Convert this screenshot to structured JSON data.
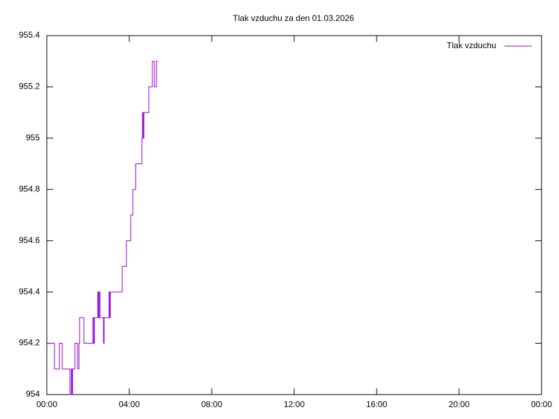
{
  "chart_data": {
    "type": "line",
    "title": "Tlak vzduchu za den 01.03.2026",
    "x": [
      0,
      0.37,
      0.61,
      0.75,
      1.12,
      1.19,
      1.22,
      1.25,
      1.36,
      1.49,
      1.56,
      1.59,
      1.8,
      2.24,
      2.27,
      2.31,
      2.47,
      2.51,
      2.54,
      2.58,
      2.75,
      2.78,
      3.02,
      3.05,
      3.08,
      3.66,
      3.86,
      4.07,
      4.17,
      4.31,
      4.61,
      4.64,
      4.68,
      4.71,
      4.95,
      5.12,
      5.22,
      5.32,
      5.39
    ],
    "series": [
      {
        "name": "Tlak vzduchu",
        "color": "#9400d3",
        "values": [
          954.2,
          954.1,
          954.2,
          954.1,
          954.0,
          954.1,
          954.0,
          954.1,
          954.2,
          954.1,
          954.2,
          954.3,
          954.2,
          954.3,
          954.2,
          954.3,
          954.4,
          954.3,
          954.4,
          954.3,
          954.2,
          954.3,
          954.4,
          954.3,
          954.4,
          954.5,
          954.6,
          954.7,
          954.8,
          954.9,
          955.0,
          955.1,
          955.0,
          955.1,
          955.2,
          955.3,
          955.2,
          955.3,
          955.3
        ]
      }
    ],
    "xlim": [
      0,
      24
    ],
    "xticks": [
      {
        "value": 0,
        "label": "00:00"
      },
      {
        "value": 4,
        "label": "04:00"
      },
      {
        "value": 8,
        "label": "08:00"
      },
      {
        "value": 12,
        "label": "12:00"
      },
      {
        "value": 16,
        "label": "16:00"
      },
      {
        "value": 20,
        "label": "20:00"
      },
      {
        "value": 24,
        "label": "00:00"
      }
    ],
    "ylim": [
      954,
      955.4
    ],
    "yticks": [
      954,
      954.2,
      954.4,
      954.6,
      954.8,
      955,
      955.2,
      955.4
    ],
    "step": true,
    "legend": "top-right"
  }
}
